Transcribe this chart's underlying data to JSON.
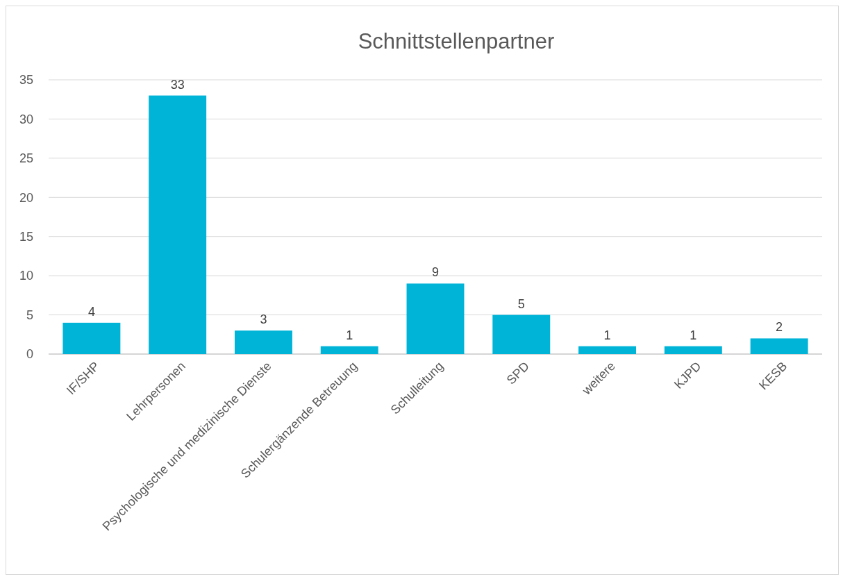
{
  "chart_data": {
    "type": "bar",
    "title": "Schnittstellenpartner",
    "categories": [
      "IF/SHP",
      "Lehrpersonen",
      "Psychologische und medizinische Dienste",
      "Schulergänzende Betreuung",
      "Schulleitung",
      "SPD",
      "weitere",
      "KJPD",
      "KESB"
    ],
    "values": [
      4,
      33,
      3,
      1,
      9,
      5,
      1,
      1,
      2
    ],
    "color": "#00b4d8",
    "ylim": [
      0,
      35
    ],
    "yticks": [
      0,
      5,
      10,
      15,
      20,
      25,
      30,
      35
    ],
    "grid": "y",
    "data_labels": true
  }
}
